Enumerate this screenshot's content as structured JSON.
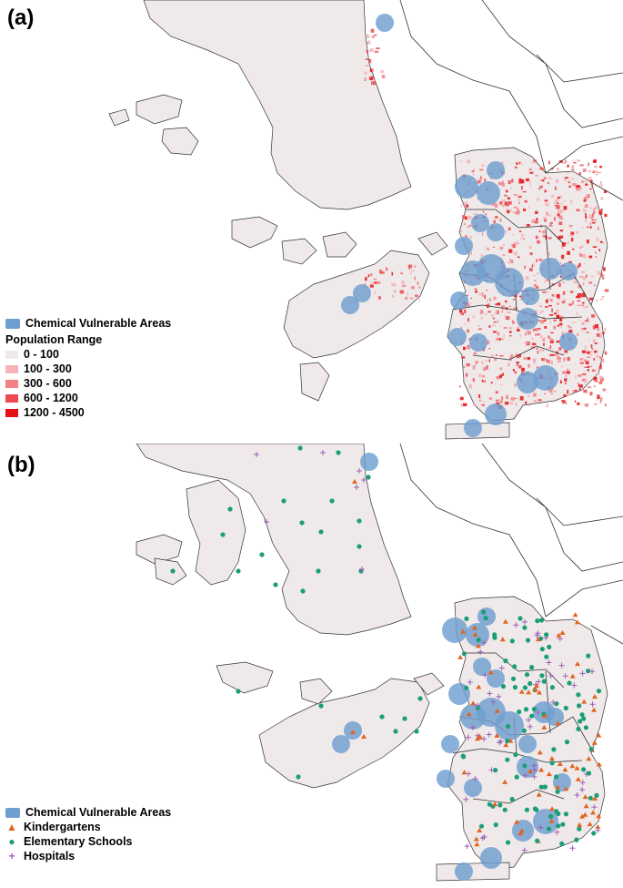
{
  "panel_a": {
    "label": "(a)",
    "legend": {
      "cva_label": "Chemical Vulnerable Areas",
      "population_title": "Population Range",
      "ranges": [
        {
          "label": "0 - 100",
          "color": "#efe9ea"
        },
        {
          "label": "100 - 300",
          "color": "#f4b4b8"
        },
        {
          "label": "300 - 600",
          "color": "#f08286"
        },
        {
          "label": "600 - 1200",
          "color": "#ec4a4f"
        },
        {
          "label": "1200 - 4500",
          "color": "#e61014"
        }
      ]
    }
  },
  "panel_b": {
    "label": "(b)",
    "legend": {
      "cva_label": "Chemical Vulnerable Areas",
      "kindergartens_label": "Kindergartens",
      "schools_label": "Elementary Schools",
      "hospitals_label": "Hospitals"
    }
  },
  "colors": {
    "land": "#efe9ea",
    "boundary": "#333333",
    "cva": "#6f9fcf",
    "kindergarten": "#e2641e",
    "school": "#1b9e77",
    "hospital": "#9e5fb8"
  }
}
